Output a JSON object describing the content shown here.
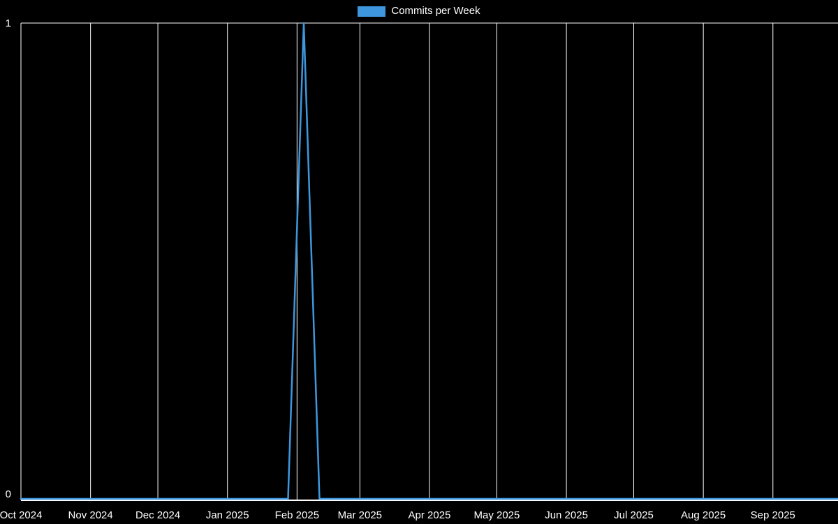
{
  "chart_data": {
    "type": "line",
    "title": "",
    "legend_position": "top",
    "legend": [
      {
        "label": "Commits per Week",
        "color": "#3e97de"
      }
    ],
    "x_tick_labels": [
      "Oct 2024",
      "Nov 2024",
      "Dec 2024",
      "Jan 2025",
      "Feb 2025",
      "Mar 2025",
      "Apr 2025",
      "May 2025",
      "Jun 2025",
      "Jul 2025",
      "Aug 2025",
      "Sep 2025"
    ],
    "y_tick_labels": [
      "0",
      "1"
    ],
    "y_tick_values": [
      0,
      1
    ],
    "ylim": [
      0,
      1
    ],
    "grid": "vertical-monthly-plus-top-line",
    "x_axis": {
      "start_label": "Oct 2024",
      "end_label": "Sep 2025",
      "month_day_offsets": [
        0,
        31,
        61,
        92,
        123,
        151,
        182,
        212,
        243,
        273,
        304,
        335
      ],
      "total_days": 364,
      "week_step_days": 7
    },
    "series": [
      {
        "name": "Commits per Week",
        "color": "#3e97de",
        "peak_week_label": "mid-Feb 2025",
        "values": [
          0,
          0,
          0,
          0,
          0,
          0,
          0,
          0,
          0,
          0,
          0,
          0,
          0,
          0,
          0,
          0,
          0,
          0,
          1,
          0,
          0,
          0,
          0,
          0,
          0,
          0,
          0,
          0,
          0,
          0,
          0,
          0,
          0,
          0,
          0,
          0,
          0,
          0,
          0,
          0,
          0,
          0,
          0,
          0,
          0,
          0,
          0,
          0,
          0,
          0,
          0,
          0,
          0
        ]
      }
    ],
    "colors": {
      "background": "#000000",
      "grid": "#ffffff",
      "axis": "#ffffff",
      "text": "#ffffff"
    }
  }
}
